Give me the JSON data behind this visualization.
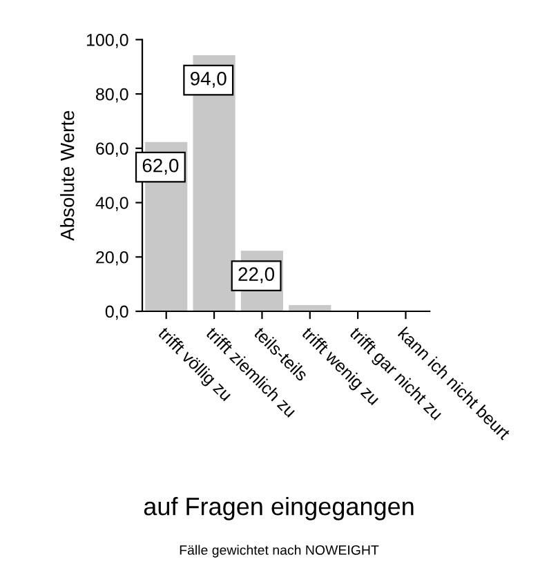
{
  "chart_data": {
    "type": "bar",
    "title": "auf Fragen eingegangen",
    "ylabel": "Absolute Werte",
    "categories": [
      "trifft völlig zu",
      "trifft ziemlich zu",
      "teils-teils",
      "trifft wenig zu",
      "trifft gar nicht zu",
      "kann ich nicht beurt"
    ],
    "values": [
      62,
      94,
      22,
      2,
      0,
      0
    ],
    "value_labels": [
      "62,0",
      "94,0",
      "22,0",
      null,
      null,
      null
    ],
    "color": "#c8c8c8",
    "ylim": [
      0,
      100
    ],
    "yticks": [
      {
        "value": 0,
        "label": "0,0"
      },
      {
        "value": 20,
        "label": "20,0"
      },
      {
        "value": 40,
        "label": "40,0"
      },
      {
        "value": 60,
        "label": "60,0"
      },
      {
        "value": 80,
        "label": "80,0"
      },
      {
        "value": 100,
        "label": "100,0"
      }
    ],
    "grid": false,
    "annotations": [
      "Fälle gewichtet nach NOWEIGHT"
    ]
  }
}
